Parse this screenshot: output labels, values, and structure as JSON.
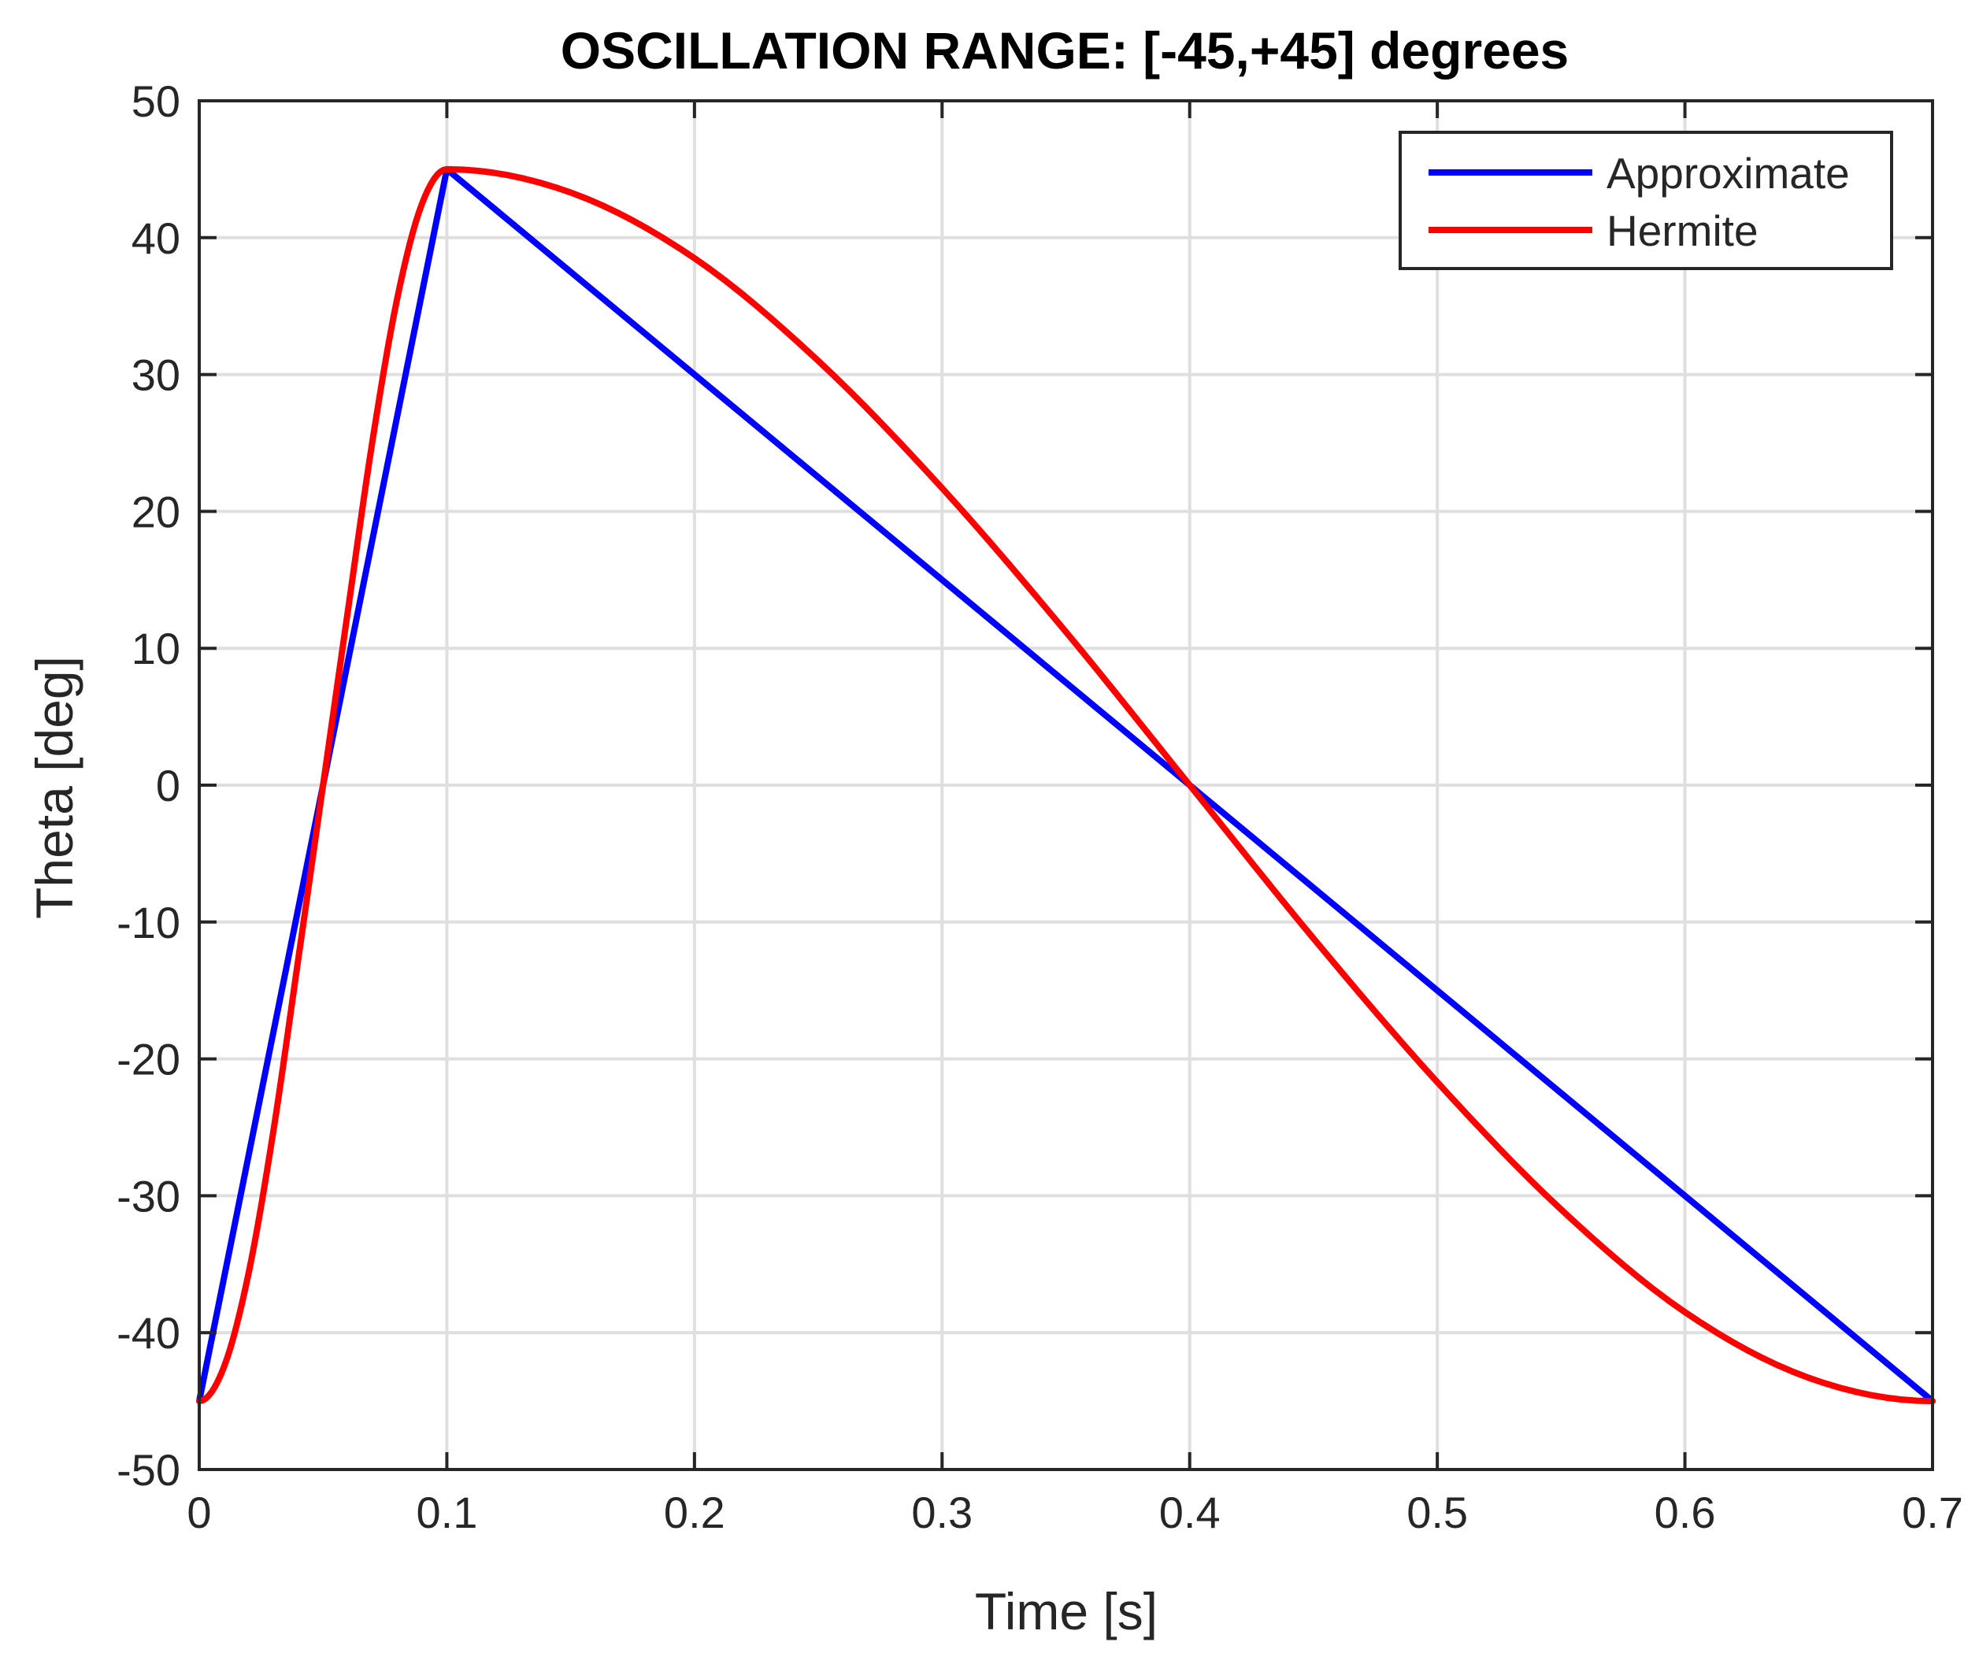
{
  "chart_data": {
    "type": "line",
    "title": "OSCILLATION RANGE: [-45,+45] degrees",
    "xlabel": "Time [s]",
    "ylabel": "Theta [deg]",
    "xlim": [
      0,
      0.7
    ],
    "ylim": [
      -50,
      50
    ],
    "xticks": [
      0,
      0.1,
      0.2,
      0.3,
      0.4,
      0.5,
      0.6,
      0.7
    ],
    "xtick_labels": [
      "0",
      "0.1",
      "0.2",
      "0.3",
      "0.4",
      "0.5",
      "0.6",
      "0.7"
    ],
    "yticks": [
      -50,
      -40,
      -30,
      -20,
      -10,
      0,
      10,
      20,
      30,
      40,
      50
    ],
    "ytick_labels": [
      "-50",
      "-40",
      "-30",
      "-20",
      "-10",
      "0",
      "10",
      "20",
      "30",
      "40",
      "50"
    ],
    "grid": true,
    "legend_position": "top-right",
    "series": [
      {
        "name": "Approximate",
        "color": "#0000ff",
        "x": [
          0,
          0.1,
          0.7
        ],
        "y": [
          -45,
          45,
          -45
        ]
      },
      {
        "name": "Hermite",
        "color": "#ff0000",
        "x": [
          0,
          0.01,
          0.02,
          0.03,
          0.04,
          0.05,
          0.06,
          0.07,
          0.08,
          0.09,
          0.1,
          0.15,
          0.2,
          0.25,
          0.3,
          0.35,
          0.4,
          0.45,
          0.5,
          0.55,
          0.6,
          0.65,
          0.7
        ],
        "y": [
          -45,
          -42.5,
          -35.6,
          -25.2,
          -12.7,
          0,
          12.7,
          25.2,
          35.6,
          42.5,
          45,
          43.3,
          38.5,
          31.0,
          21.7,
          11.2,
          0,
          -11.2,
          -21.7,
          -31.0,
          -38.5,
          -43.3,
          -45
        ]
      }
    ]
  }
}
